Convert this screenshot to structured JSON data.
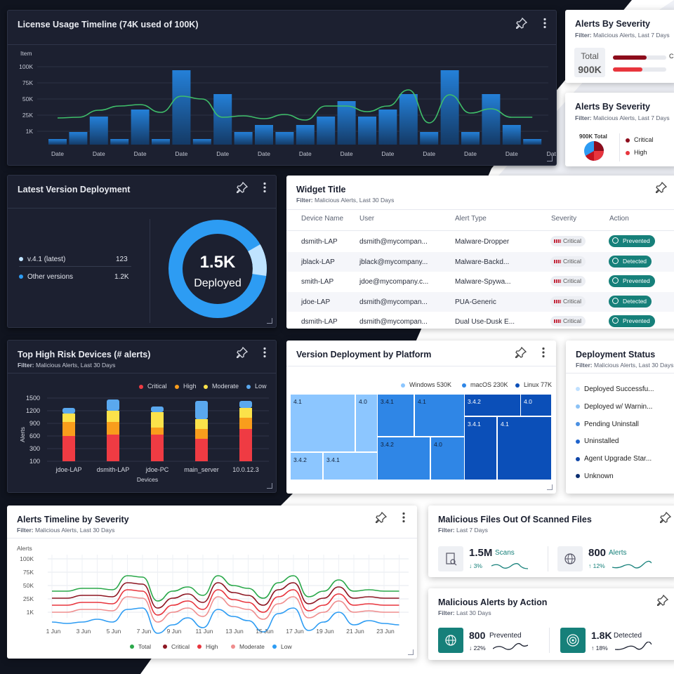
{
  "license": {
    "title": "License Usage Timeline (74K used of 100K)",
    "y_axis_title": "Item",
    "y_ticks": [
      "100K",
      "75K",
      "50K",
      "25K",
      "1K"
    ],
    "x_tick_label": "Date",
    "x_ticks": [
      "Date",
      "Date",
      "Date",
      "Date",
      "Date",
      "Date",
      "Date",
      "Date",
      "Date",
      "Date",
      "Date",
      "Date",
      "Date"
    ]
  },
  "alerts_sev_1": {
    "title": "Alerts By Severity",
    "filter_label": "Filter:",
    "filter_value": "Malicious Alerts, Last 7 Days",
    "total_label": "Total",
    "total_value": "900K",
    "bar_labels": [
      "C",
      ""
    ]
  },
  "alerts_sev_2": {
    "title": "Alerts By Severity",
    "filter_label": "Filter:",
    "filter_value": "Malicious Alerts, Last 7 Days",
    "pie_label": "900K Total",
    "legend": [
      {
        "label": "Critical",
        "color": "#8d0d1c"
      },
      {
        "label": "High",
        "color": "#e8353d"
      }
    ]
  },
  "deployment": {
    "title": "Latest Version Deployment",
    "items": [
      {
        "label": "v.4.1 (latest)",
        "value": "123",
        "color": "#bfe3ff"
      },
      {
        "label": "Other versions",
        "value": "1.2K",
        "color": "#2d9cf3"
      }
    ],
    "center_value": "1.5K",
    "center_label": "Deployed"
  },
  "widget": {
    "title": "Widget Title",
    "filter_label": "Filter:",
    "filter_value": "Malicious Alerts, Last 30 Days",
    "columns": [
      "Device Name",
      "User",
      "Alert Type",
      "Severity",
      "Action"
    ],
    "rows": [
      {
        "device": "dsmith-LAP",
        "user": "dsmith@mycompan...",
        "type": "Malware-Dropper",
        "severity": "Critical",
        "action": "Prevented"
      },
      {
        "device": "jblack-LAP",
        "user": "jblack@mycompany...",
        "type": "Malware-Backd...",
        "severity": "Critical",
        "action": "Detected"
      },
      {
        "device": "smith-LAP",
        "user": "jdoe@mycompany.c...",
        "type": "Malware-Spywa...",
        "severity": "Critical",
        "action": "Prevented"
      },
      {
        "device": "jdoe-LAP",
        "user": "dsmith@mycompan...",
        "type": "PUA-Generic",
        "severity": "Critical",
        "action": "Detected"
      },
      {
        "device": "dsmith-LAP",
        "user": "dsmith@mycompan...",
        "type": "Dual Use-Dusk E...",
        "severity": "Critical",
        "action": "Prevented"
      }
    ]
  },
  "risk": {
    "title": "Top High Risk Devices (# alerts)",
    "filter_label": "Filter:",
    "filter_value": "Malicious Alerts, Last 30 Days",
    "legend": [
      {
        "label": "Critical",
        "color": "#ef3b43"
      },
      {
        "label": "High",
        "color": "#f99d1c"
      },
      {
        "label": "Moderate",
        "color": "#fbe24a"
      },
      {
        "label": "Low",
        "color": "#5aa8ee"
      }
    ],
    "y_ticks": [
      "1500",
      "1200",
      "900",
      "600",
      "300",
      "100"
    ],
    "y_title": "Alerts",
    "x_title": "Devices"
  },
  "platform": {
    "title": "Version Deployment by Platform",
    "legend": [
      {
        "label": "Windows 530K",
        "color": "#8cc6ff"
      },
      {
        "label": "macOS 230K",
        "color": "#2f86e6"
      },
      {
        "label": "Linux 77K",
        "color": "#0b4fb8"
      }
    ],
    "tiles": [
      "4.1",
      "4.0",
      "3.4.1",
      "4.1",
      "3.4.2",
      "4.0",
      "3.4.2",
      "3.4.1",
      "3.4.2",
      "4.0",
      "3.4.1",
      "4.1"
    ]
  },
  "status": {
    "title": "Deployment Status",
    "filter_label": "Filter:",
    "filter_value": "Malicious Alerts, Last 30 Days",
    "items": [
      {
        "label": "Deployed Successfu...",
        "color": "#bfe0ff"
      },
      {
        "label": "Deployed w/ Warnin...",
        "color": "#8cc2f5"
      },
      {
        "label": "Pending Uninstall",
        "color": "#4a90e2"
      },
      {
        "label": "Uninstalled",
        "color": "#1f64cc"
      },
      {
        "label": "Agent Upgrade Star...",
        "color": "#0f46a8"
      },
      {
        "label": "Unknown",
        "color": "#0a2d70"
      }
    ]
  },
  "timeline": {
    "title": "Alerts Timeline by Severity",
    "filter_label": "Filter:",
    "filter_value": "Malicious Alerts, Last 30 Days",
    "y_title": "Alerts",
    "y_ticks": [
      "100K",
      "75K",
      "50K",
      "25K",
      "1K"
    ],
    "x_ticks": [
      "1 Jun",
      "3 Jun",
      "5 Jun",
      "7 Jun",
      "9 Jun",
      "11 Jun",
      "13 Jun",
      "15 Jun",
      "17 Jun",
      "19 Jun",
      "21 Jun",
      "23 Jun"
    ],
    "legend": [
      {
        "label": "Total",
        "color": "#2aa84a"
      },
      {
        "label": "Critical",
        "color": "#8d1622"
      },
      {
        "label": "High",
        "color": "#e8353d"
      },
      {
        "label": "Moderate",
        "color": "#ef8d8d"
      },
      {
        "label": "Low",
        "color": "#2d9cf3"
      }
    ]
  },
  "malfiles": {
    "title": "Malicious Files Out Of Scanned Files",
    "filter_label": "Filter:",
    "filter_value": "Last 7 Days",
    "stats": [
      {
        "value": "1.5M",
        "label": "Scans",
        "delta": "3%",
        "dir": "down"
      },
      {
        "value": "800",
        "label": "Alerts",
        "delta": "12%",
        "dir": "up"
      }
    ]
  },
  "malaction": {
    "title": "Malicious Alerts by Action",
    "filter_label": "Filter:",
    "filter_value": "Last 30 Days",
    "stats": [
      {
        "value": "800",
        "label": "Prevented",
        "delta": "22%",
        "dir": "down"
      },
      {
        "value": "1.8K",
        "label": "Detected",
        "delta": "18%",
        "dir": "up"
      }
    ]
  }
}
